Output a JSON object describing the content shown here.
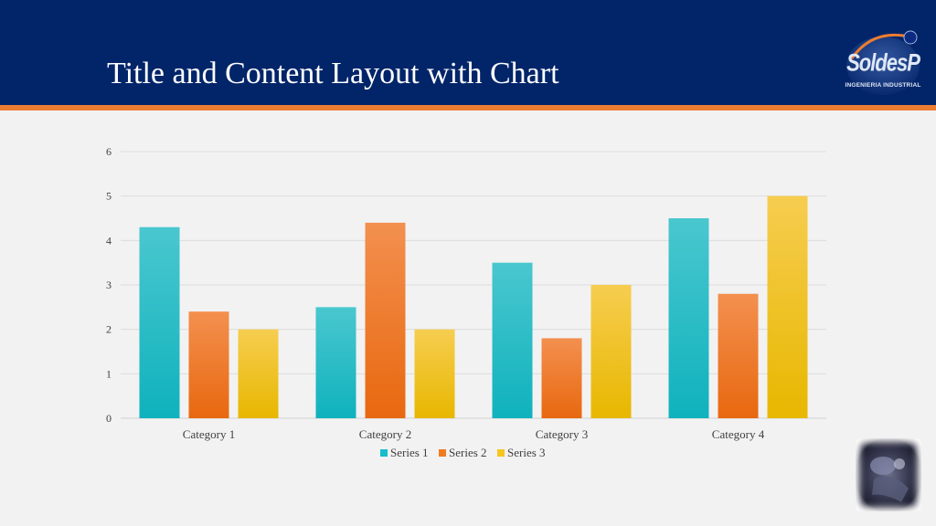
{
  "slide": {
    "title": "Title and Content Layout with Chart"
  },
  "logo": {
    "name": "SoldesP",
    "tagline": "INGENIERIA INDUSTRIAL",
    "icon": "soldesp-logo"
  },
  "photo": {
    "icon": "welding-photo"
  },
  "colors": {
    "header": "#022569",
    "accent": "#ed7d31",
    "series1": "#17bec9",
    "series2": "#f07c22",
    "series3": "#f6c520"
  },
  "chart_data": {
    "type": "bar",
    "categories": [
      "Category 1",
      "Category 2",
      "Category 3",
      "Category 4"
    ],
    "series": [
      {
        "name": "Series 1",
        "values": [
          4.3,
          2.5,
          3.5,
          4.5
        ]
      },
      {
        "name": "Series 2",
        "values": [
          2.4,
          4.4,
          1.8,
          2.8
        ]
      },
      {
        "name": "Series 3",
        "values": [
          2,
          2,
          3,
          5
        ]
      }
    ],
    "ylim": [
      0,
      6
    ],
    "yticks": [
      0,
      1,
      2,
      3,
      4,
      5,
      6
    ],
    "grid": true,
    "legend": "bottom"
  }
}
